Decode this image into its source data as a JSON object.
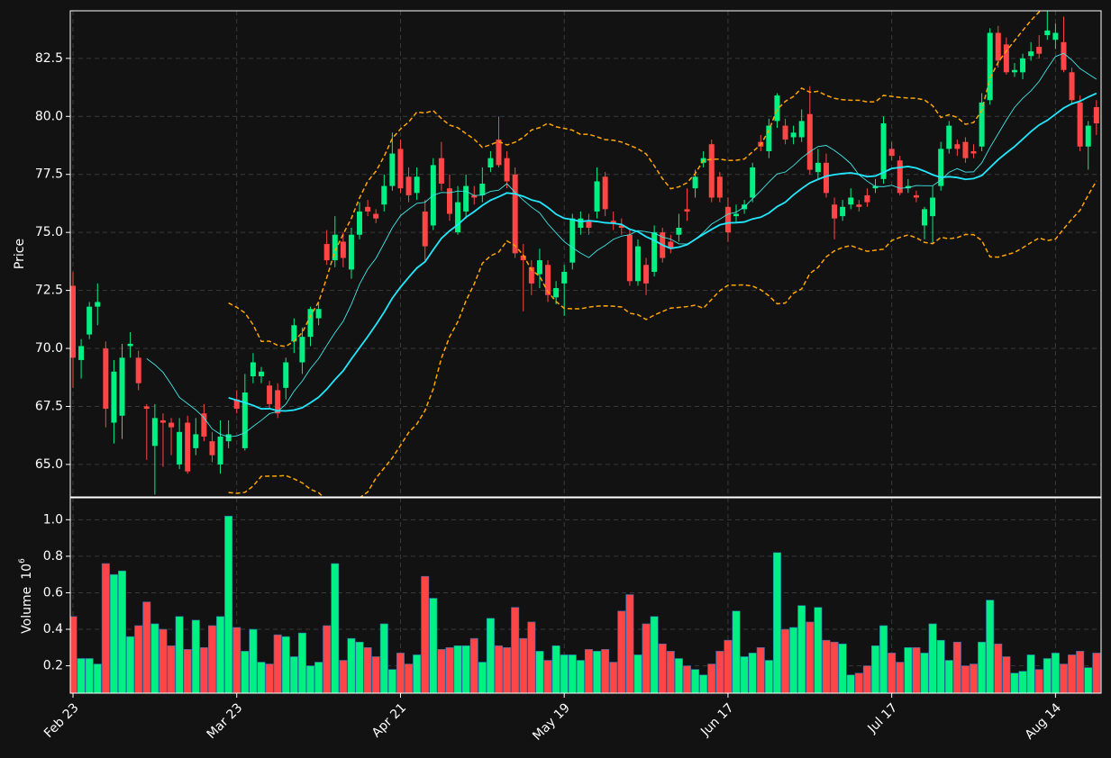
{
  "chart_data": {
    "type": "candlestick",
    "y_label": "Price",
    "y2_label": "Volume",
    "y2_multiplier": "10",
    "y2_multiplier_exp": "6",
    "categories": [
      "Feb 23",
      null,
      null,
      null,
      null,
      null,
      null,
      null,
      null,
      null,
      null,
      null,
      null,
      null,
      null,
      null,
      null,
      null,
      null,
      null,
      "Mar 23",
      null,
      null,
      null,
      null,
      null,
      null,
      null,
      null,
      null,
      null,
      null,
      null,
      null,
      null,
      null,
      null,
      null,
      null,
      null,
      "Apr 21",
      null,
      null,
      null,
      null,
      null,
      null,
      null,
      null,
      null,
      null,
      null,
      null,
      null,
      null,
      null,
      null,
      null,
      null,
      null,
      "May 19",
      null,
      null,
      null,
      null,
      null,
      null,
      null,
      null,
      null,
      null,
      null,
      null,
      null,
      null,
      null,
      null,
      null,
      null,
      null,
      "Jun 17",
      null,
      null,
      null,
      null,
      null,
      null,
      null,
      null,
      null,
      null,
      null,
      null,
      null,
      null,
      null,
      null,
      null,
      null,
      null,
      "Jul 17",
      null,
      null,
      null,
      null,
      null,
      null,
      null,
      null,
      null,
      null,
      null,
      null,
      null,
      null,
      null,
      null,
      null,
      null,
      null,
      "Aug 14",
      null,
      null,
      null,
      null,
      null
    ],
    "ohlc": [
      [
        72.7,
        73.3,
        68.3,
        69.6
      ],
      [
        69.5,
        70.4,
        68.7,
        70.1
      ],
      [
        70.6,
        72.0,
        70.4,
        71.8
      ],
      [
        71.8,
        72.8,
        71.0,
        72.0
      ],
      [
        70.0,
        70.3,
        66.6,
        67.4
      ],
      [
        66.8,
        69.5,
        65.9,
        69.0
      ],
      [
        67.1,
        70.2,
        66.1,
        69.6
      ],
      [
        70.1,
        70.7,
        69.6,
        70.2
      ],
      [
        69.6,
        69.9,
        68.2,
        68.5
      ],
      [
        67.5,
        67.6,
        65.2,
        67.4
      ],
      [
        65.8,
        67.6,
        63.7,
        67.0
      ],
      [
        66.9,
        67.2,
        64.9,
        66.8
      ],
      [
        66.8,
        67.0,
        65.4,
        66.6
      ],
      [
        65.0,
        67.0,
        64.8,
        66.4
      ],
      [
        66.8,
        67.1,
        64.6,
        64.7
      ],
      [
        65.7,
        67.0,
        65.4,
        66.3
      ],
      [
        67.2,
        67.6,
        66.0,
        66.2
      ],
      [
        66.0,
        66.4,
        65.1,
        65.4
      ],
      [
        65.0,
        66.9,
        64.6,
        66.2
      ],
      [
        66.0,
        66.9,
        65.7,
        66.3
      ],
      [
        67.8,
        68.2,
        67.2,
        67.4
      ],
      [
        65.7,
        68.9,
        65.6,
        68.1
      ],
      [
        68.8,
        69.8,
        68.5,
        69.4
      ],
      [
        68.8,
        69.2,
        68.5,
        69.0
      ],
      [
        68.4,
        68.6,
        67.4,
        67.6
      ],
      [
        68.2,
        68.5,
        67.0,
        67.2
      ],
      [
        68.3,
        69.6,
        67.8,
        69.4
      ],
      [
        70.3,
        71.3,
        69.8,
        71.0
      ],
      [
        69.4,
        70.9,
        68.9,
        70.5
      ],
      [
        70.5,
        71.8,
        70.1,
        71.7
      ],
      [
        71.3,
        72.0,
        71.0,
        71.7
      ],
      [
        74.5,
        75.1,
        73.6,
        73.8
      ],
      [
        73.8,
        75.7,
        73.5,
        74.9
      ],
      [
        74.6,
        75.0,
        73.5,
        73.9
      ],
      [
        73.4,
        75.2,
        73.0,
        74.9
      ],
      [
        74.9,
        76.3,
        74.7,
        75.9
      ],
      [
        76.1,
        76.4,
        75.7,
        75.9
      ],
      [
        75.8,
        76.0,
        75.4,
        75.6
      ],
      [
        76.2,
        77.5,
        75.9,
        77.0
      ],
      [
        77.0,
        79.3,
        76.8,
        78.4
      ],
      [
        78.6,
        79.0,
        76.7,
        76.9
      ],
      [
        77.4,
        77.8,
        76.3,
        76.6
      ],
      [
        76.7,
        77.8,
        76.4,
        77.4
      ],
      [
        75.9,
        76.4,
        73.8,
        74.4
      ],
      [
        75.3,
        78.2,
        75.1,
        77.9
      ],
      [
        78.2,
        78.9,
        76.8,
        77.1
      ],
      [
        76.9,
        77.5,
        75.5,
        75.8
      ],
      [
        75.0,
        77.0,
        74.9,
        76.3
      ],
      [
        75.9,
        77.5,
        75.6,
        77.0
      ],
      [
        76.6,
        77.0,
        76.2,
        76.5
      ],
      [
        76.6,
        77.8,
        76.3,
        77.1
      ],
      [
        77.8,
        78.5,
        77.6,
        78.2
      ],
      [
        79.0,
        80.0,
        77.8,
        77.9
      ],
      [
        78.2,
        78.5,
        76.9,
        77.2
      ],
      [
        77.5,
        77.8,
        73.9,
        74.1
      ],
      [
        74.0,
        74.5,
        71.6,
        73.8
      ],
      [
        73.5,
        73.8,
        72.3,
        72.8
      ],
      [
        73.2,
        74.3,
        72.6,
        73.8
      ],
      [
        73.6,
        73.8,
        72.0,
        72.3
      ],
      [
        72.2,
        72.9,
        71.9,
        72.6
      ],
      [
        72.8,
        73.6,
        71.4,
        73.3
      ],
      [
        73.7,
        75.8,
        73.4,
        75.6
      ],
      [
        75.2,
        75.9,
        74.9,
        75.6
      ],
      [
        75.5,
        75.8,
        74.9,
        75.2
      ],
      [
        75.9,
        77.8,
        75.6,
        77.2
      ],
      [
        77.4,
        77.6,
        75.7,
        76.0
      ],
      [
        75.5,
        75.9,
        75.1,
        75.4
      ],
      [
        75.3,
        75.6,
        74.9,
        75.2
      ],
      [
        74.9,
        75.1,
        72.7,
        72.9
      ],
      [
        72.9,
        74.7,
        72.7,
        74.4
      ],
      [
        73.6,
        73.9,
        72.3,
        72.8
      ],
      [
        73.3,
        75.3,
        73.1,
        75.0
      ],
      [
        75.0,
        75.2,
        73.7,
        73.9
      ],
      [
        74.6,
        74.9,
        74.1,
        74.3
      ],
      [
        74.9,
        75.8,
        74.6,
        75.2
      ],
      [
        76.0,
        76.9,
        75.5,
        75.9
      ],
      [
        76.9,
        77.7,
        76.5,
        77.4
      ],
      [
        78.0,
        78.5,
        77.8,
        78.2
      ],
      [
        78.8,
        79.0,
        76.3,
        76.5
      ],
      [
        77.4,
        77.6,
        76.3,
        76.5
      ],
      [
        76.1,
        76.5,
        74.6,
        75.0
      ],
      [
        75.7,
        76.2,
        75.4,
        75.8
      ],
      [
        76.0,
        76.4,
        75.8,
        76.2
      ],
      [
        76.5,
        78.0,
        76.3,
        77.8
      ],
      [
        78.9,
        79.2,
        78.5,
        78.7
      ],
      [
        78.5,
        79.9,
        78.2,
        79.6
      ],
      [
        79.8,
        81.0,
        79.5,
        80.9
      ],
      [
        79.6,
        79.9,
        78.8,
        79.0
      ],
      [
        79.1,
        79.6,
        78.8,
        79.3
      ],
      [
        79.1,
        80.3,
        78.9,
        79.8
      ],
      [
        80.1,
        81.3,
        77.5,
        77.7
      ],
      [
        77.6,
        78.6,
        77.3,
        78.0
      ],
      [
        78.0,
        78.4,
        76.5,
        76.7
      ],
      [
        76.2,
        76.5,
        74.7,
        75.6
      ],
      [
        75.7,
        76.4,
        75.5,
        76.1
      ],
      [
        76.2,
        76.9,
        76.0,
        76.5
      ],
      [
        76.2,
        76.4,
        75.9,
        76.1
      ],
      [
        76.6,
        76.9,
        76.1,
        76.3
      ],
      [
        76.9,
        77.3,
        76.7,
        77.0
      ],
      [
        77.3,
        80.0,
        77.1,
        79.7
      ],
      [
        78.6,
        78.9,
        78.1,
        78.3
      ],
      [
        78.1,
        78.3,
        76.6,
        76.7
      ],
      [
        76.9,
        77.3,
        76.7,
        77.0
      ],
      [
        76.6,
        76.8,
        76.3,
        76.5
      ],
      [
        75.3,
        76.1,
        74.7,
        76.0
      ],
      [
        75.7,
        77.0,
        74.5,
        76.5
      ],
      [
        77.0,
        78.9,
        76.8,
        78.6
      ],
      [
        78.6,
        79.8,
        78.4,
        79.6
      ],
      [
        78.8,
        79.0,
        78.3,
        78.6
      ],
      [
        78.9,
        79.1,
        78.0,
        78.2
      ],
      [
        78.5,
        78.8,
        78.2,
        78.4
      ],
      [
        78.7,
        81.0,
        78.5,
        80.6
      ],
      [
        80.7,
        83.8,
        80.5,
        83.6
      ],
      [
        83.6,
        83.9,
        82.1,
        82.4
      ],
      [
        83.1,
        83.4,
        81.8,
        81.9
      ],
      [
        81.9,
        82.3,
        81.7,
        82.0
      ],
      [
        81.9,
        82.7,
        81.6,
        82.5
      ],
      [
        82.6,
        83.2,
        82.4,
        82.8
      ],
      [
        83.0,
        83.5,
        82.5,
        82.7
      ],
      [
        83.5,
        84.8,
        83.3,
        83.7
      ],
      [
        83.3,
        84.0,
        82.9,
        83.6
      ],
      [
        83.2,
        84.3,
        81.9,
        82.0
      ],
      [
        81.9,
        82.1,
        80.5,
        80.7
      ],
      [
        80.6,
        80.9,
        78.5,
        78.7
      ],
      [
        78.7,
        79.8,
        77.7,
        79.6
      ],
      [
        80.4,
        80.7,
        79.2,
        79.7
      ]
    ],
    "volume": [
      0.47,
      0.24,
      0.24,
      0.21,
      0.76,
      0.7,
      0.72,
      0.36,
      0.42,
      0.55,
      0.43,
      0.4,
      0.31,
      0.47,
      0.29,
      0.45,
      0.3,
      0.42,
      0.47,
      1.02,
      0.41,
      0.28,
      0.4,
      0.22,
      0.21,
      0.37,
      0.36,
      0.25,
      0.38,
      0.2,
      0.22,
      0.42,
      0.76,
      0.23,
      0.35,
      0.33,
      0.3,
      0.25,
      0.43,
      0.18,
      0.27,
      0.21,
      0.26,
      0.69,
      0.57,
      0.29,
      0.3,
      0.31,
      0.31,
      0.35,
      0.22,
      0.46,
      0.31,
      0.3,
      0.52,
      0.35,
      0.44,
      0.28,
      0.23,
      0.31,
      0.26,
      0.26,
      0.23,
      0.29,
      0.28,
      0.29,
      0.22,
      0.5,
      0.59,
      0.26,
      0.43,
      0.47,
      0.32,
      0.28,
      0.24,
      0.2,
      0.18,
      0.15,
      0.21,
      0.28,
      0.34,
      0.5,
      0.25,
      0.27,
      0.3,
      0.23,
      0.82,
      0.4,
      0.41,
      0.53,
      0.44,
      0.52,
      0.34,
      0.33,
      0.32,
      0.15,
      0.16,
      0.2,
      0.31,
      0.42,
      0.27,
      0.22,
      0.3,
      0.3,
      0.27,
      0.43,
      0.34,
      0.23,
      0.33,
      0.2,
      0.21,
      0.33,
      0.56,
      0.32,
      0.25,
      0.16,
      0.17,
      0.26,
      0.18,
      0.24,
      0.27,
      0.21,
      0.26,
      0.28,
      0.19,
      0.27
    ],
    "up_color": "#00f084",
    "down_color": "#ff4545",
    "mav": [
      10,
      20
    ],
    "mav_colors": [
      "#3fe6e6",
      "#22e8ff"
    ],
    "bollinger": {
      "window": 20,
      "std": 2,
      "color": "#ffa500"
    },
    "ylim": [
      63.6,
      84.55
    ],
    "yticks": [
      {
        "value": 65,
        "label": "65.0"
      },
      67.5,
      {
        "value": 70,
        "label": "70.0"
      },
      72.5,
      {
        "value": 75,
        "label": "75.0"
      },
      77.5,
      {
        "value": 80,
        "label": "80.0"
      },
      82.5
    ],
    "y2lim": [
      0.05,
      1.12
    ],
    "y2ticks": [
      0.2,
      0.4,
      0.6,
      0.8,
      {
        "value": 1,
        "label": "1.0"
      }
    ],
    "grid": true
  }
}
